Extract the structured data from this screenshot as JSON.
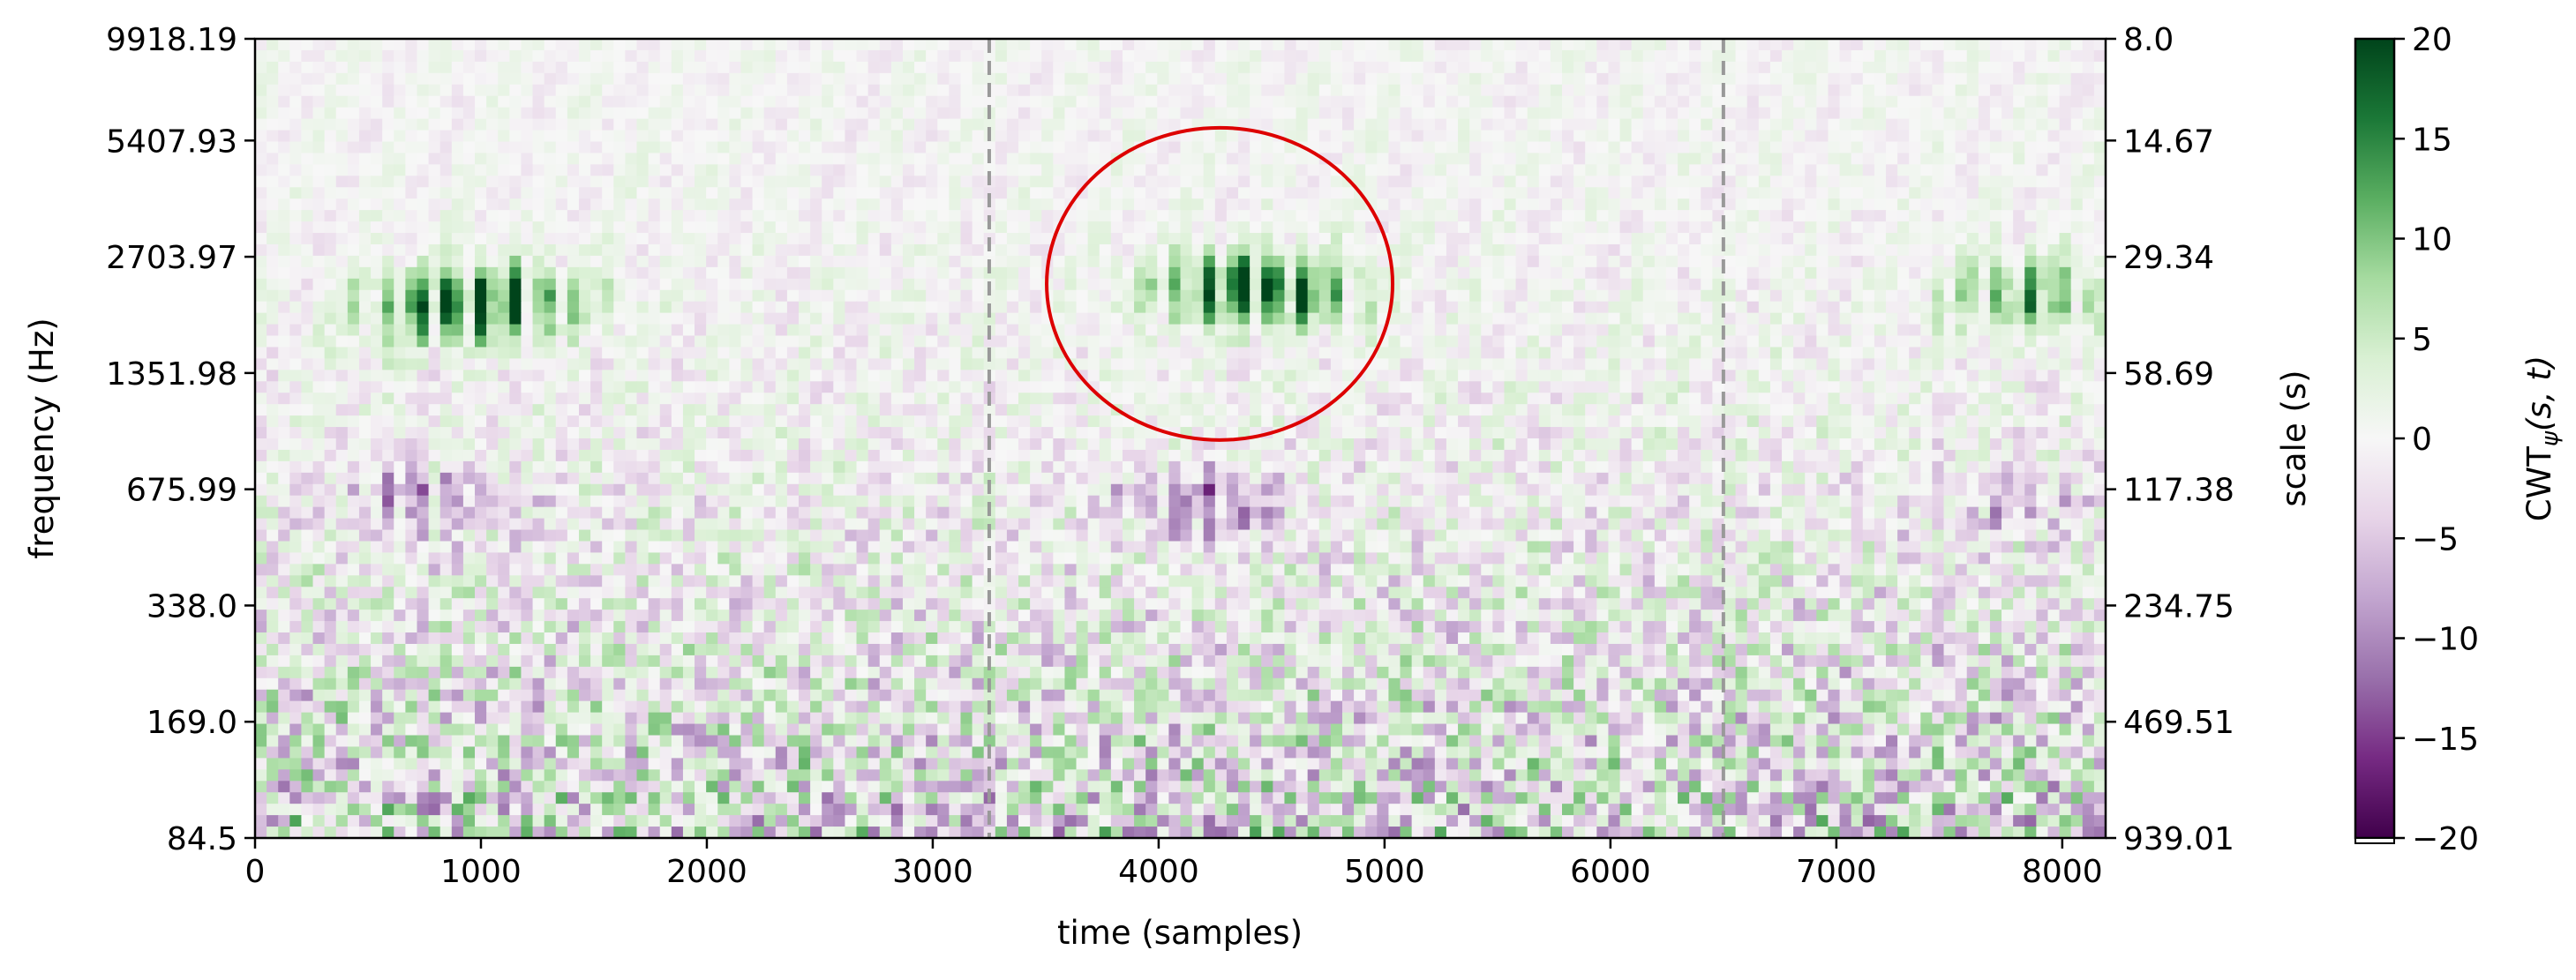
{
  "chart_data": {
    "type": "heatmap",
    "title": "",
    "xlabel": "time (samples)",
    "ylabel_left": "frequency (Hz)",
    "ylabel_right": "scale (s)",
    "colorbar_label_main": "CWT",
    "colorbar_label_sub": "ψ",
    "colorbar_label_args": "(s, t)",
    "xlim": [
      0,
      8192
    ],
    "x_ticks": [
      0,
      1000,
      2000,
      3000,
      4000,
      5000,
      6000,
      7000,
      8000
    ],
    "x_tick_labels": [
      "0",
      "1000",
      "2000",
      "3000",
      "4000",
      "5000",
      "6000",
      "7000",
      "8000"
    ],
    "y_left_tick_labels": [
      "9918.19",
      "5407.93",
      "2703.97",
      "1351.98",
      "675.99",
      "338.0",
      "169.0",
      "84.5"
    ],
    "y_right_tick_labels": [
      "8.0",
      "14.67",
      "29.34",
      "58.69",
      "117.38",
      "234.75",
      "469.51",
      "939.01"
    ],
    "colorbar_range": [
      -20,
      20
    ],
    "colorbar_ticks": [
      20,
      15,
      10,
      5,
      0,
      -5,
      -10,
      -15,
      -20
    ],
    "colorbar_tick_labels": [
      "20",
      "15",
      "10",
      "5",
      "0",
      "−5",
      "−10",
      "−15",
      "−20"
    ],
    "colormap": "PRGn",
    "segment_boundaries": [
      3250,
      6500
    ],
    "annotation": {
      "type": "ellipse",
      "center_time": 4270,
      "center_frequency_hz": 2300,
      "color": "#dd0000"
    },
    "hotspots": [
      {
        "time": 820,
        "frequency_hz": 2000,
        "amplitude": 19
      },
      {
        "time": 1180,
        "frequency_hz": 2100,
        "amplitude": 14
      },
      {
        "time": 4330,
        "frequency_hz": 2250,
        "amplitude": 20
      },
      {
        "time": 4620,
        "frequency_hz": 2150,
        "amplitude": 11
      },
      {
        "time": 7850,
        "frequency_hz": 2150,
        "amplitude": 16
      },
      {
        "time": 780,
        "frequency_hz": 640,
        "amplitude": -13
      },
      {
        "time": 4180,
        "frequency_hz": 620,
        "amplitude": -14
      },
      {
        "time": 7730,
        "frequency_hz": 620,
        "amplitude": -8
      }
    ],
    "grid": false
  }
}
